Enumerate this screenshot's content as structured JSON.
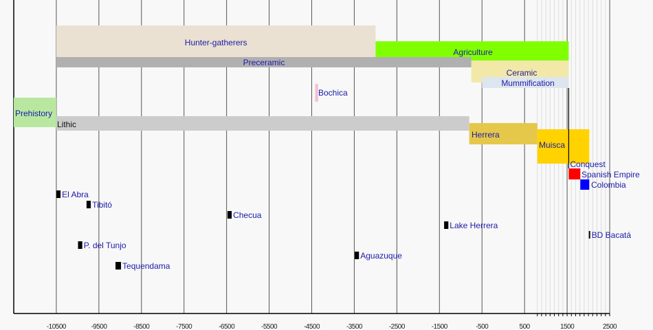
{
  "chart_data": {
    "type": "timeline",
    "title": "",
    "xlim": [
      -11500,
      2500
    ],
    "x_ticks": [
      -10500,
      -9500,
      -8500,
      -7500,
      -6500,
      -5500,
      -4500,
      -3500,
      -2500,
      -1500,
      -500,
      500,
      1500,
      2500
    ],
    "grid": true,
    "periods": [
      {
        "label": "Hunter-gatherers",
        "start": -10500,
        "end": -3000,
        "color": "#ebe1d2"
      },
      {
        "label": "Agriculture",
        "start": -3000,
        "end": 1537,
        "color": "#80ff00"
      },
      {
        "label": "Preceramic",
        "start": -10500,
        "end": -750,
        "color": "#b0b0b0"
      },
      {
        "label": "Ceramic",
        "start": -750,
        "end": 1537,
        "color": "#f2e8a8"
      },
      {
        "label": "Mummification",
        "start": -500,
        "end": 1537,
        "color": "#dde6ee"
      },
      {
        "label": "Bochica",
        "start": -4420,
        "end": -4350,
        "color": "#f4c0d0"
      },
      {
        "label": "Prehistory",
        "start": -11500,
        "end": -10500,
        "color": "#b8e8a0"
      },
      {
        "label": "Lithic",
        "start": -10500,
        "end": -800,
        "color": "#cccccc"
      },
      {
        "label": "Herrera",
        "start": -800,
        "end": 800,
        "color": "#e5c84a"
      },
      {
        "label": "Muisca",
        "start": 800,
        "end": 2020,
        "color": "#ffd200"
      },
      {
        "label": "Spanish Empire",
        "start": 1537,
        "end": 1810,
        "color": "#ff0000"
      },
      {
        "label": "Colombia",
        "start": 1810,
        "end": 2020,
        "color": "#0000ff"
      }
    ],
    "events": [
      {
        "label": "Conquest",
        "year": 1537
      }
    ],
    "sites": [
      {
        "label": "El Abra",
        "start": -10500,
        "end": -10400
      },
      {
        "label": "Tibitó",
        "start": -9790,
        "end": -9690
      },
      {
        "label": "Checua",
        "start": -6480,
        "end": -6380
      },
      {
        "label": "Lake Herrera",
        "start": -1390,
        "end": -1290
      },
      {
        "label": "BD Bacatá",
        "start": 2010,
        "end": 2030
      },
      {
        "label": "P. del Tunjo",
        "start": -9990,
        "end": -9890
      },
      {
        "label": "Aguazuque",
        "start": -3490,
        "end": -3390
      },
      {
        "label": "Tequendama",
        "start": -9110,
        "end": -8980
      }
    ],
    "site_color": "#000000",
    "label_color": "#1a1aa8"
  }
}
